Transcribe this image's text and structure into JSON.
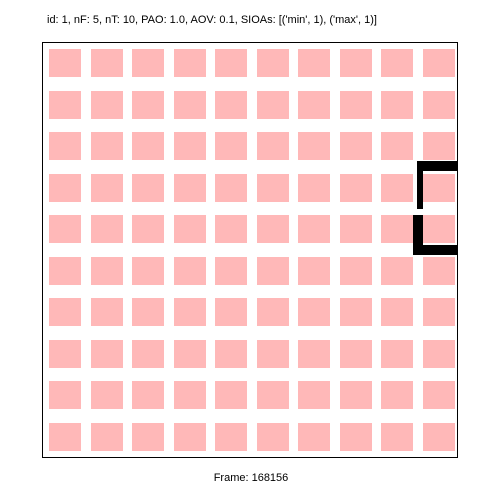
{
  "header": {
    "info": "id: 1, nF: 5, nT: 10, PAO: 1.0, AOV: 0.1, SIOAs: [('min', 1), ('max', 1)]"
  },
  "footer": {
    "frame_label": "Frame: 168156"
  },
  "board": {
    "rows": 10,
    "cols": 10,
    "cell_color": "#ffb8b8",
    "border_color": "#000000",
    "background_color": "#ffffff"
  },
  "cursor": {
    "shape": "c-bracket",
    "color": "#000000",
    "row_start": 3,
    "row_end": 4,
    "col": 9
  }
}
